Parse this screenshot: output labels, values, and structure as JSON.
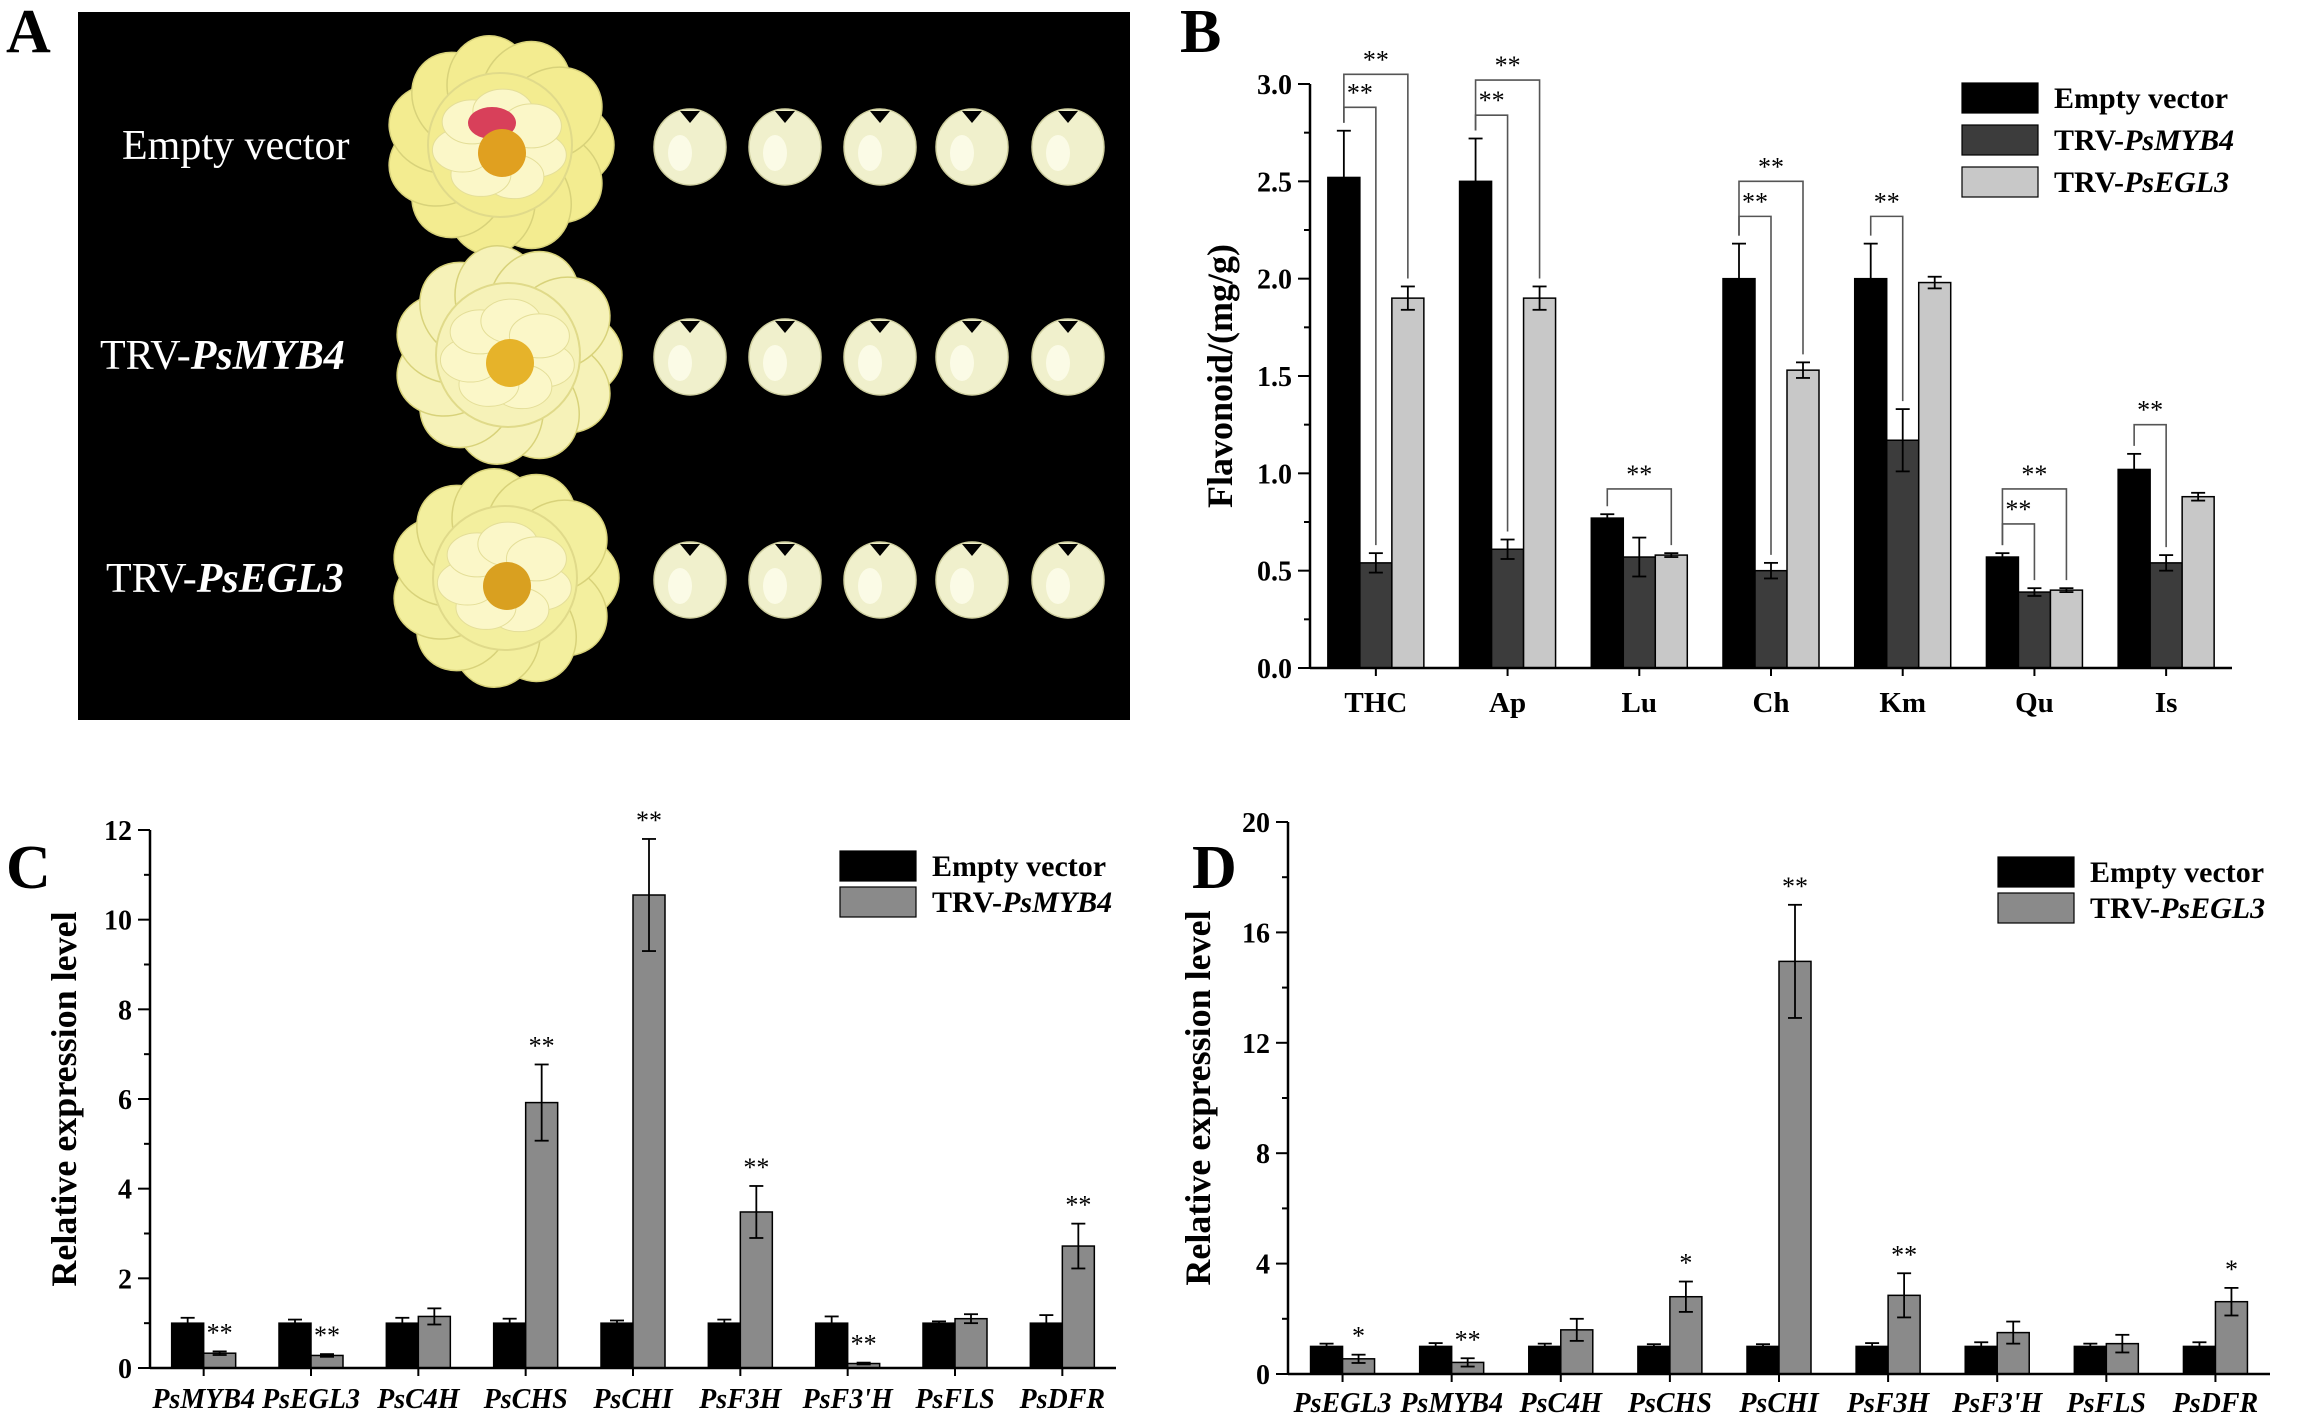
{
  "panels": {
    "a": "A",
    "b": "B",
    "c": "C",
    "d": "D"
  },
  "photo": {
    "rows": [
      {
        "label_plain": "Empty vector",
        "label_italic": "",
        "flower_color": "#f3ec90",
        "center_color": "#e0a020",
        "has_red": true
      },
      {
        "label_plain": "TRV-",
        "label_italic": "PsMYB4",
        "flower_color": "#f6f2b8",
        "center_color": "#e6b32a",
        "has_red": false
      },
      {
        "label_plain": "TRV-",
        "label_italic": "PsEGL3",
        "flower_color": "#f3ef9e",
        "center_color": "#d9a020",
        "has_red": false
      }
    ],
    "background": "#000000"
  },
  "colors": {
    "black": "#000000",
    "dark_gray": "#3c3c3c",
    "light_gray": "#c8c8c8",
    "mid_gray": "#8a8a8a"
  },
  "chart_data": [
    {
      "id": "B",
      "type": "bar",
      "ylabel": "Flavonoid/(mg/g)",
      "ylim": [
        0,
        3.0
      ],
      "yticks": [
        "0.0",
        "0.5",
        "1.0",
        "1.5",
        "2.0",
        "2.5",
        "3.0"
      ],
      "categories": [
        "THC",
        "Ap",
        "Lu",
        "Ch",
        "Km",
        "Qu",
        "Is"
      ],
      "series": [
        {
          "name": "Empty vector",
          "name_italic": "",
          "color": "#000000",
          "values": [
            2.52,
            2.5,
            0.77,
            2.0,
            2.0,
            0.57,
            1.02
          ],
          "errors": [
            0.24,
            0.22,
            0.02,
            0.18,
            0.18,
            0.02,
            0.08
          ]
        },
        {
          "name": "TRV-",
          "name_italic": "PsMYB4",
          "color": "#3c3c3c",
          "values": [
            0.54,
            0.61,
            0.57,
            0.5,
            1.17,
            0.39,
            0.54
          ],
          "errors": [
            0.05,
            0.05,
            0.1,
            0.04,
            0.16,
            0.02,
            0.04
          ]
        },
        {
          "name": "TRV-",
          "name_italic": "PsEGL3",
          "color": "#c8c8c8",
          "values": [
            1.9,
            1.9,
            0.58,
            1.53,
            1.98,
            0.4,
            0.88
          ],
          "errors": [
            0.06,
            0.06,
            0.01,
            0.04,
            0.03,
            0.01,
            0.02
          ]
        }
      ],
      "significance": [
        {
          "category": 0,
          "from": 0,
          "to": 1,
          "label": "**",
          "level": 2.88
        },
        {
          "category": 0,
          "from": 0,
          "to": 2,
          "label": "**",
          "level": 3.05
        },
        {
          "category": 1,
          "from": 0,
          "to": 1,
          "label": "**",
          "level": 2.84
        },
        {
          "category": 1,
          "from": 0,
          "to": 2,
          "label": "**",
          "level": 3.02
        },
        {
          "category": 2,
          "from": 0,
          "to": 2,
          "label": "**",
          "level": 0.92
        },
        {
          "category": 3,
          "from": 0,
          "to": 1,
          "label": "**",
          "level": 2.32
        },
        {
          "category": 3,
          "from": 0,
          "to": 2,
          "label": "**",
          "level": 2.5
        },
        {
          "category": 4,
          "from": 0,
          "to": 1,
          "label": "**",
          "level": 2.32
        },
        {
          "category": 5,
          "from": 0,
          "to": 1,
          "label": "**",
          "level": 0.74
        },
        {
          "category": 5,
          "from": 0,
          "to": 2,
          "label": "**",
          "level": 0.92
        },
        {
          "category": 6,
          "from": 0,
          "to": 1,
          "label": "**",
          "level": 1.25
        }
      ]
    },
    {
      "id": "C",
      "type": "bar",
      "ylabel": "Relative expression level",
      "ylim": [
        0,
        12
      ],
      "yticks": [
        "0",
        "2",
        "4",
        "6",
        "8",
        "10",
        "12"
      ],
      "categories": [
        "PsMYB4",
        "PsEGL3",
        "PsC4H",
        "PsCHS",
        "PsCHI",
        "PsF3H",
        "PsF3'H",
        "PsFLS",
        "PsDFR"
      ],
      "series": [
        {
          "name": "Empty vector",
          "name_italic": "",
          "color": "#000000",
          "values": [
            1.0,
            1.0,
            1.0,
            1.0,
            1.0,
            1.0,
            1.0,
            1.0,
            1.0
          ],
          "errors": [
            0.12,
            0.08,
            0.12,
            0.1,
            0.06,
            0.08,
            0.15,
            0.04,
            0.18
          ]
        },
        {
          "name": "TRV-",
          "name_italic": "PsMYB4",
          "color": "#8a8a8a",
          "values": [
            0.33,
            0.28,
            1.15,
            5.92,
            10.55,
            3.48,
            0.1,
            1.1,
            2.72
          ],
          "errors": [
            0.04,
            0.03,
            0.18,
            0.85,
            1.25,
            0.58,
            0.02,
            0.1,
            0.5
          ]
        }
      ],
      "stars": [
        "**",
        "**",
        "",
        "**",
        "**",
        "**",
        "**",
        "",
        "**"
      ]
    },
    {
      "id": "D",
      "type": "bar",
      "ylabel": "Relative expression level",
      "ylim": [
        0,
        20
      ],
      "yticks": [
        "0",
        "4",
        "8",
        "12",
        "16",
        "20"
      ],
      "categories": [
        "PsEGL3",
        "PsMYB4",
        "PsC4H",
        "PsCHS",
        "PsCHI",
        "PsF3H",
        "PsF3'H",
        "PsFLS",
        "PsDFR"
      ],
      "series": [
        {
          "name": "Empty vector",
          "name_italic": "",
          "color": "#000000",
          "values": [
            1.0,
            1.0,
            1.0,
            1.0,
            1.0,
            1.0,
            1.0,
            1.0,
            1.0
          ],
          "errors": [
            0.1,
            0.12,
            0.1,
            0.08,
            0.08,
            0.12,
            0.15,
            0.1,
            0.15
          ]
        },
        {
          "name": "TRV-",
          "name_italic": "PsEGL3",
          "color": "#8a8a8a",
          "values": [
            0.55,
            0.42,
            1.6,
            2.8,
            14.95,
            2.85,
            1.5,
            1.1,
            2.62
          ],
          "errors": [
            0.15,
            0.15,
            0.4,
            0.55,
            2.05,
            0.8,
            0.4,
            0.32,
            0.5
          ]
        }
      ],
      "stars": [
        "*",
        "**",
        "",
        "*",
        "**",
        "**",
        "",
        "",
        "*"
      ]
    }
  ]
}
